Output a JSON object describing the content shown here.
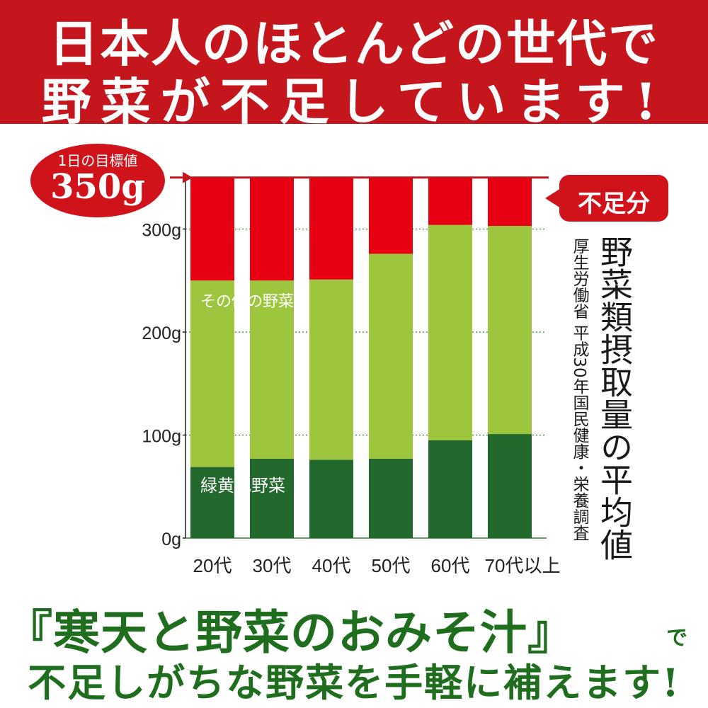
{
  "banner": {
    "line1": "日本人のほとんどの世代で",
    "line2": "野菜が不足しています!"
  },
  "target": {
    "label": "1日の目標値",
    "value": "350g"
  },
  "shortage_label": "不足分",
  "colors": {
    "banner": "#c4161c",
    "shortage": "#e60012",
    "other_vegetables": "#9dc63e",
    "green_yellow_vegetables": "#23692d",
    "slogan": "#1e6e1e"
  },
  "chart_data": {
    "type": "bar",
    "stacked": true,
    "title": "野菜類摂取量の平均値",
    "source": "厚生労働省 平成30年国民健康・栄養調査",
    "categories": [
      "20代",
      "30代",
      "40代",
      "50代",
      "60代",
      "70代以上"
    ],
    "series": [
      {
        "name": "緑黄色野菜",
        "values": [
          69,
          77,
          76,
          77,
          95,
          101
        ]
      },
      {
        "name": "その他の野菜",
        "values": [
          181,
          173,
          175,
          199,
          209,
          202
        ]
      },
      {
        "name": "不足分",
        "values": [
          100,
          100,
          99,
          74,
          46,
          47
        ]
      }
    ],
    "target": 350,
    "yticks": [
      "0g",
      "100g",
      "200g",
      "300g"
    ],
    "ytick_values": [
      0,
      100,
      200,
      300
    ],
    "ylim": [
      0,
      350
    ],
    "grid": true
  },
  "slogan": {
    "product": "『寒天と野菜のおみそ汁』",
    "particle": "で",
    "line2": "不足しがちな野菜を手軽に補えます!"
  }
}
